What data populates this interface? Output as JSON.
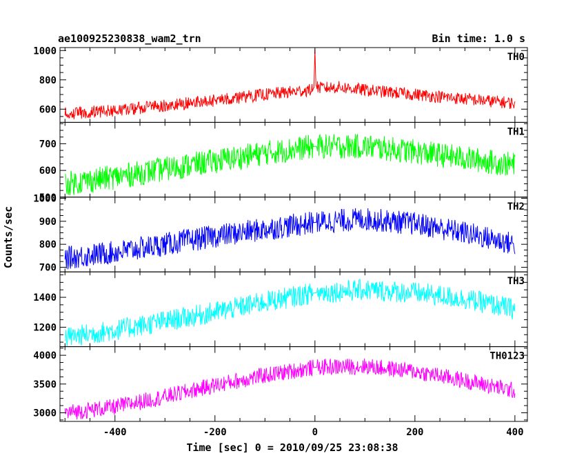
{
  "chart_data": {
    "type": "line",
    "title": "ae100925230838_wam2_trn",
    "subtitle": "Bin time: 1.0 s",
    "xlabel": "Time [sec] 0 = 2010/09/25 23:08:38",
    "ylabel": "Counts/sec",
    "xlim": [
      -510,
      425
    ],
    "xticks": [
      -400,
      -200,
      0,
      200,
      400
    ],
    "x_range_data": [
      -500,
      400
    ],
    "grid": false,
    "legend": "none",
    "panels": [
      {
        "name": "TH0",
        "color": "#ff0000",
        "ylim": [
          510,
          1020
        ],
        "yticks": [
          600,
          800,
          1000
        ],
        "x": [
          -500,
          -400,
          -300,
          -200,
          -100,
          -10,
          -2,
          0,
          2,
          10,
          50,
          100,
          200,
          300,
          400
        ],
        "y": [
          570,
          590,
          625,
          660,
          700,
          730,
          745,
          1010,
          760,
          745,
          750,
          730,
          700,
          670,
          640
        ],
        "noise_amplitude": 50
      },
      {
        "name": "TH1",
        "color": "#00ff00",
        "ylim": [
          500,
          780
        ],
        "yticks": [
          500,
          600,
          700
        ],
        "x": [
          -500,
          -400,
          -300,
          -200,
          -100,
          0,
          100,
          200,
          300,
          400
        ],
        "y": [
          550,
          575,
          605,
          635,
          665,
          690,
          690,
          670,
          645,
          620
        ],
        "noise_amplitude": 55
      },
      {
        "name": "TH2",
        "color": "#0000ff",
        "ylim": [
          680,
          1005
        ],
        "yticks": [
          700,
          800,
          900,
          1000
        ],
        "x": [
          -500,
          -400,
          -300,
          -200,
          -100,
          0,
          100,
          200,
          300,
          400
        ],
        "y": [
          740,
          765,
          800,
          835,
          865,
          895,
          910,
          890,
          850,
          800
        ],
        "noise_amplitude": 60
      },
      {
        "name": "TH3",
        "color": "#00ffff",
        "ylim": [
          1070,
          1570
        ],
        "yticks": [
          1200,
          1400
        ],
        "x": [
          -500,
          -400,
          -300,
          -200,
          -100,
          0,
          100,
          200,
          300,
          400
        ],
        "y": [
          1130,
          1180,
          1240,
          1300,
          1370,
          1430,
          1450,
          1430,
          1390,
          1320
        ],
        "noise_amplitude": 85
      },
      {
        "name": "TH0123",
        "color": "#ff00ff",
        "ylim": [
          2850,
          4150
        ],
        "yticks": [
          3000,
          3500,
          4000
        ],
        "x": [
          -500,
          -400,
          -300,
          -200,
          -100,
          0,
          100,
          200,
          300,
          400
        ],
        "y": [
          3000,
          3100,
          3280,
          3480,
          3650,
          3790,
          3810,
          3720,
          3560,
          3380
        ],
        "noise_amplitude": 170
      }
    ]
  }
}
